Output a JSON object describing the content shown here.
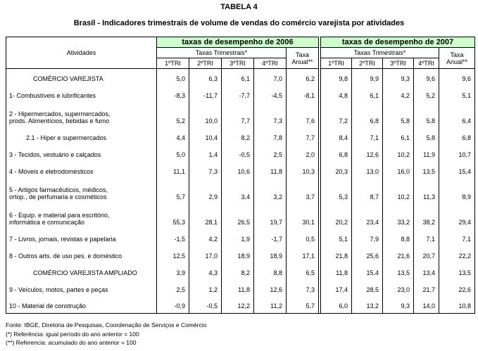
{
  "header": {
    "title": "TABELA 4",
    "subtitle": "Brasil -  Indicadores trimestrais de volume de vendas do comércio varejista por atividades"
  },
  "table": {
    "activity_header": "Atividades",
    "groups": [
      "taxas de desempenho de 2006",
      "taxas de desempenho de 2007"
    ],
    "quarterly_header": "Taxas Trimestrais*",
    "annual_header": [
      "Taxa",
      "Anual**"
    ],
    "quarters": [
      "1ºTRI",
      "2ºTRI",
      "3ºTRI",
      "4ºTRI"
    ],
    "rows": [
      {
        "label": [
          "COMÉRCIO VAREJISTA"
        ],
        "values": [
          "5,0",
          "6,3",
          "6,1",
          "7,0",
          "6,2",
          "9,8",
          "9,9",
          "9,3",
          "9,6",
          "9,6"
        ]
      },
      {
        "label": [
          "1- Combustíveis e lubrificantes"
        ],
        "values": [
          "-8,3",
          "-11,7",
          "-7,7",
          "-4,5",
          "-8,1",
          "4,8",
          "6,1",
          "4,2",
          "5,2",
          "5,1"
        ]
      },
      {
        "label": [
          "2 - Hipermercados, supermercados,",
          "prods. Alimentícios, bebidas e fumo"
        ],
        "values": [
          "5,2",
          "10,0",
          "7,7",
          "7,3",
          "7,6",
          "7,2",
          "6,8",
          "5,8",
          "5,8",
          "6,4"
        ]
      },
      {
        "label": [
          "2.1 - Hiper e supermercados"
        ],
        "values": [
          "4,4",
          "10,4",
          "8,2",
          "7,8",
          "7,7",
          "8,4",
          "7,1",
          "6,1",
          "5,8",
          "6,8"
        ]
      },
      {
        "label": [
          "3 - Tecidos, vestuário e calçados"
        ],
        "values": [
          "5,0",
          "1,4",
          "-0,5",
          "2,5",
          "2,0",
          "6,8",
          "12,6",
          "10,2",
          "11,9",
          "10,7"
        ]
      },
      {
        "label": [
          "4 - Móveis e eletrodomésticos"
        ],
        "values": [
          "11,1",
          "7,3",
          "10,6",
          "11,8",
          "10,3",
          "20,3",
          "13,0",
          "16,0",
          "13,5",
          "15,4"
        ]
      },
      {
        "label": [
          "5 - Artigos farmacêuticos, médicos,",
          "ortop., de perfumaria e cosméticos"
        ],
        "values": [
          "5,7",
          "2,9",
          "3,4",
          "3,2",
          "3,7",
          "5,3",
          "8,7",
          "10,2",
          "11,3",
          "8,9"
        ]
      },
      {
        "label": [
          "6 - Equip. e material para escritório,",
          "informática e comunicação"
        ],
        "values": [
          "55,3",
          "28,1",
          "26,5",
          "19,7",
          "30,1",
          "20,2",
          "23,4",
          "33,2",
          "38,2",
          "29,4"
        ]
      },
      {
        "label": [
          "7 - Livros, jornais, revistas e papelaria"
        ],
        "values": [
          "-1,5",
          "4,2",
          "1,9",
          "-1,7",
          "0,5",
          "5,1",
          "7,9",
          "8,8",
          "7,1",
          "7,1"
        ]
      },
      {
        "label": [
          "8 - Outros arts. de uso pes. e doméstico"
        ],
        "values": [
          "12,5",
          "17,0",
          "18,9",
          "18,9",
          "17,1",
          "21,8",
          "25,6",
          "21,6",
          "20,7",
          "22,2"
        ]
      },
      {
        "label": [
          "COMÉRCIO VAREJISTA AMPLIADO"
        ],
        "values": [
          "3,9",
          "4,3",
          "8,2",
          "8,8",
          "6,5",
          "11,8",
          "15,4",
          "13,5",
          "13,4",
          "13,5"
        ]
      },
      {
        "label": [
          "9 - Veículos, motos, partes e peças"
        ],
        "values": [
          "2,5",
          "1,2",
          "11,8",
          "12,6",
          "7,3",
          "17,4",
          "28,5",
          "23,0",
          "21,7",
          "22,6"
        ]
      },
      {
        "label": [
          "10 - Material de construção"
        ],
        "values": [
          "-0,9",
          "-0,5",
          "12,2",
          "11,2",
          "5,7",
          "6,0",
          "13,2",
          "9,3",
          "14,0",
          "10,8"
        ]
      }
    ]
  },
  "footer": [
    "Fonte: IBGE, Diretoria de Pesquisas, Coordenação de Serviços e Comércio",
    "(*) Referência: igual período do ano anterior = 100",
    "(**) Referencia: acumulado do ano anterior = 100"
  ]
}
